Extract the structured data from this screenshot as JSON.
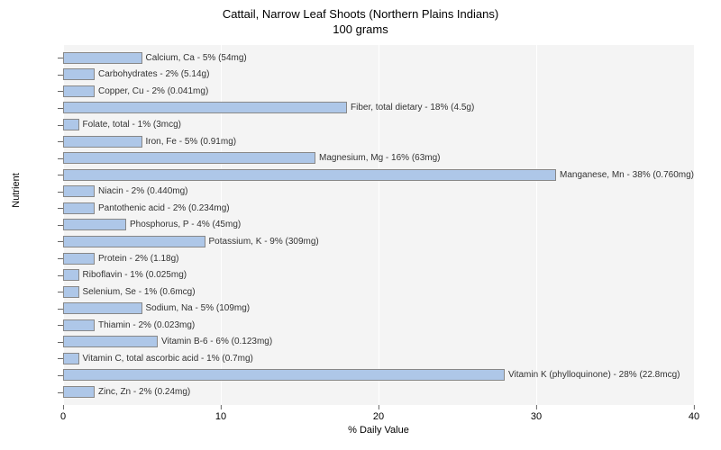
{
  "chart": {
    "type": "horizontal-bar",
    "title_line1": "Cattail, Narrow Leaf Shoots (Northern Plains Indians)",
    "title_line2": "100 grams",
    "title_fontsize": 13,
    "xlabel": "% Daily Value",
    "ylabel": "Nutrient",
    "label_fontsize": 11,
    "xlim": [
      0,
      40
    ],
    "xtick_step": 10,
    "xticks": [
      0,
      10,
      20,
      30,
      40
    ],
    "background_color": "#ffffff",
    "plot_background_color": "#f4f4f4",
    "grid_color": "#ffffff",
    "bar_color": "#aec7e8",
    "bar_border_color": "#888888",
    "bar_label_fontsize": 10,
    "bars": [
      {
        "label": "Calcium, Ca - 5% (54mg)",
        "value": 5
      },
      {
        "label": "Carbohydrates - 2% (5.14g)",
        "value": 2
      },
      {
        "label": "Copper, Cu - 2% (0.041mg)",
        "value": 2
      },
      {
        "label": "Fiber, total dietary - 18% (4.5g)",
        "value": 18
      },
      {
        "label": "Folate, total - 1% (3mcg)",
        "value": 1
      },
      {
        "label": "Iron, Fe - 5% (0.91mg)",
        "value": 5
      },
      {
        "label": "Magnesium, Mg - 16% (63mg)",
        "value": 16
      },
      {
        "label": "Manganese, Mn - 38% (0.760mg)",
        "value": 38
      },
      {
        "label": "Niacin - 2% (0.440mg)",
        "value": 2
      },
      {
        "label": "Pantothenic acid - 2% (0.234mg)",
        "value": 2
      },
      {
        "label": "Phosphorus, P - 4% (45mg)",
        "value": 4
      },
      {
        "label": "Potassium, K - 9% (309mg)",
        "value": 9
      },
      {
        "label": "Protein - 2% (1.18g)",
        "value": 2
      },
      {
        "label": "Riboflavin - 1% (0.025mg)",
        "value": 1
      },
      {
        "label": "Selenium, Se - 1% (0.6mcg)",
        "value": 1
      },
      {
        "label": "Sodium, Na - 5% (109mg)",
        "value": 5
      },
      {
        "label": "Thiamin - 2% (0.023mg)",
        "value": 2
      },
      {
        "label": "Vitamin B-6 - 6% (0.123mg)",
        "value": 6
      },
      {
        "label": "Vitamin C, total ascorbic acid - 1% (0.7mg)",
        "value": 1
      },
      {
        "label": "Vitamin K (phylloquinone) - 28% (22.8mcg)",
        "value": 28
      },
      {
        "label": "Zinc, Zn - 2% (0.24mg)",
        "value": 2
      }
    ]
  }
}
